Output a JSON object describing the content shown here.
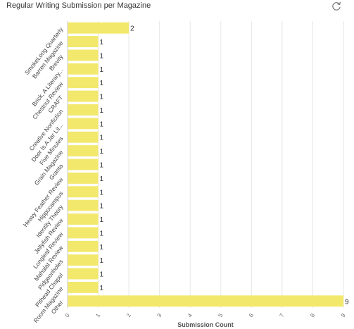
{
  "header": {
    "title": "Regular Writing Submission per Magazine",
    "refresh_icon": "refresh-icon"
  },
  "chart_data": {
    "type": "bar",
    "orientation": "horizontal",
    "title": "Regular Writing Submission per Magazine",
    "xlabel": "Submission Count",
    "ylabel": "",
    "xlim": [
      0,
      9
    ],
    "x_ticks": [
      "0",
      "1",
      "2",
      "3",
      "4",
      "5",
      "6",
      "7",
      "8",
      "9"
    ],
    "grid": true,
    "bar_color": "#f2e86b",
    "categories": [
      "SmokeLong Quarterly",
      "Barren Magazine",
      "Brevity",
      "Brick, A Literary...",
      "Chestnut Review",
      "CRAFT",
      "Creative Nonfiction",
      "Door Is A Jar Lit...",
      "Five Minutes",
      "Grain Magazine",
      "Granta",
      "Heavy Feather Review",
      "Hippocampus",
      "Identity Theory",
      "Jellyfish Review",
      "Longleaf Review",
      "Mahalat Review",
      "Pidgeonholes",
      "Pithead Chapel",
      "Room Magazine",
      "Other"
    ],
    "values": [
      2,
      1,
      1,
      1,
      1,
      1,
      1,
      1,
      1,
      1,
      1,
      1,
      1,
      1,
      1,
      1,
      1,
      1,
      1,
      1,
      9
    ]
  }
}
